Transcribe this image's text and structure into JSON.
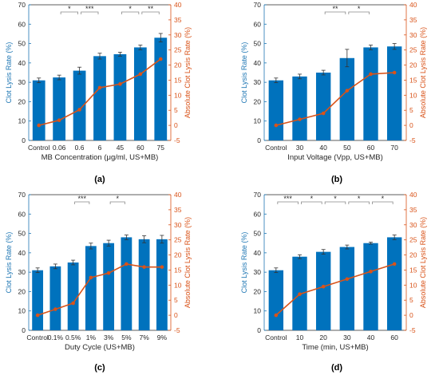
{
  "colors": {
    "bar": "#0072bd",
    "line": "#d95319",
    "axis_left": "#1f77b4",
    "axis_right": "#d95319",
    "error": "#333333",
    "bracket": "#888888"
  },
  "chart_data": [
    {
      "type": "bar",
      "panel_label": "(a)",
      "categories": [
        "Control",
        "0.06",
        "0.6",
        "6",
        "45",
        "60",
        "75"
      ],
      "xlabel": "MB Concentration (μg/ml, US+MB)",
      "ylabel": "Clot Lysis Rate (%)",
      "ylabel_right": "Absolute Clot Lysis Rate (%)",
      "ylim": [
        0,
        70
      ],
      "ylim_right": [
        -5,
        40
      ],
      "yticks": [
        "0",
        "10",
        "20",
        "30",
        "40",
        "50",
        "60",
        "70"
      ],
      "yticks_right": [
        "-5",
        "0",
        "5",
        "10",
        "15",
        "20",
        "25",
        "30",
        "35",
        "40"
      ],
      "series": [
        {
          "values": [
            31,
            32.5,
            36,
            43.5,
            44.5,
            48,
            53
          ],
          "errors": [
            1.2,
            1.2,
            1.8,
            1.5,
            1,
            1.2,
            2.2
          ]
        },
        {
          "type": "line",
          "axis": "right",
          "values": [
            0,
            1.7,
            5.2,
            12.5,
            13.7,
            17,
            22
          ]
        }
      ],
      "significance": [
        {
          "from": 1,
          "to": 2,
          "label": "*"
        },
        {
          "from": 2,
          "to": 3,
          "label": "***"
        },
        {
          "from": 4,
          "to": 5,
          "label": "*"
        },
        {
          "from": 5,
          "to": 6,
          "label": "**"
        }
      ]
    },
    {
      "type": "bar",
      "panel_label": "(b)",
      "categories": [
        "Control",
        "30",
        "40",
        "50",
        "60",
        "70"
      ],
      "xlabel": "Input Voltage (Vpp, US+MB)",
      "ylabel": "Clot Lysis Rate (%)",
      "ylabel_right": "Absolute Clot Lysis Rate (%)",
      "ylim": [
        0,
        70
      ],
      "ylim_right": [
        -5,
        40
      ],
      "yticks": [
        "0",
        "10",
        "20",
        "30",
        "40",
        "50",
        "60",
        "70"
      ],
      "yticks_right": [
        "-5",
        "0",
        "5",
        "10",
        "15",
        "20",
        "25",
        "30",
        "35",
        "40"
      ],
      "series": [
        {
          "values": [
            31,
            33,
            35,
            42.5,
            48,
            48.5
          ],
          "errors": [
            1.2,
            1.2,
            1.2,
            4.5,
            1.2,
            1.5
          ]
        },
        {
          "type": "line",
          "axis": "right",
          "values": [
            0,
            2,
            4,
            11.5,
            17,
            17.5
          ]
        }
      ],
      "significance": [
        {
          "from": 2,
          "to": 3,
          "label": "**"
        },
        {
          "from": 3,
          "to": 4,
          "label": "*"
        }
      ]
    },
    {
      "type": "bar",
      "panel_label": "(c)",
      "categories": [
        "Control",
        "0.1%",
        "0.5%",
        "1%",
        "3%",
        "5%",
        "7%",
        "9%"
      ],
      "xlabel": "Duty Cycle (US+MB)",
      "ylabel": "Clot Lysis Rate (%)",
      "ylabel_right": "Absolute Clot Lysis Rate (%)",
      "ylim": [
        0,
        70
      ],
      "ylim_right": [
        -5,
        40
      ],
      "yticks": [
        "0",
        "10",
        "20",
        "30",
        "40",
        "50",
        "60",
        "70"
      ],
      "yticks_right": [
        "-5",
        "0",
        "5",
        "10",
        "15",
        "20",
        "25",
        "30",
        "35",
        "40"
      ],
      "series": [
        {
          "values": [
            31,
            33,
            35,
            43.5,
            45,
            48,
            47,
            47
          ],
          "errors": [
            1.2,
            1.2,
            1.2,
            1.5,
            1.5,
            1.2,
            1.8,
            2
          ]
        },
        {
          "type": "line",
          "axis": "right",
          "values": [
            0,
            2,
            4,
            12.5,
            14,
            17,
            16,
            16
          ]
        }
      ],
      "significance": [
        {
          "from": 2,
          "to": 3,
          "label": "***"
        },
        {
          "from": 4,
          "to": 5,
          "label": "*"
        }
      ]
    },
    {
      "type": "bar",
      "panel_label": "(d)",
      "categories": [
        "Control",
        "10",
        "20",
        "30",
        "40",
        "60"
      ],
      "xlabel": "Time (min, US+MB)",
      "ylabel": "Clot Lysis Rate (%)",
      "ylabel_right": "Absolute Clot Lysis Rate (%)",
      "ylim": [
        0,
        70
      ],
      "ylim_right": [
        -5,
        40
      ],
      "yticks": [
        "0",
        "10",
        "20",
        "30",
        "40",
        "50",
        "60",
        "70"
      ],
      "yticks_right": [
        "-5",
        "0",
        "5",
        "10",
        "15",
        "20",
        "25",
        "30",
        "35",
        "40"
      ],
      "series": [
        {
          "values": [
            31,
            38,
            40.5,
            43,
            45,
            48
          ],
          "errors": [
            1.2,
            1,
            1.2,
            1,
            0.5,
            1.2
          ]
        },
        {
          "type": "line",
          "axis": "right",
          "values": [
            0,
            7,
            9.5,
            12,
            14.5,
            17
          ]
        }
      ],
      "significance": [
        {
          "from": 0,
          "to": 1,
          "label": "***"
        },
        {
          "from": 1,
          "to": 2,
          "label": "*"
        },
        {
          "from": 2,
          "to": 3,
          "label": "*"
        },
        {
          "from": 3,
          "to": 4,
          "label": "*"
        },
        {
          "from": 4,
          "to": 5,
          "label": "*"
        }
      ]
    }
  ]
}
